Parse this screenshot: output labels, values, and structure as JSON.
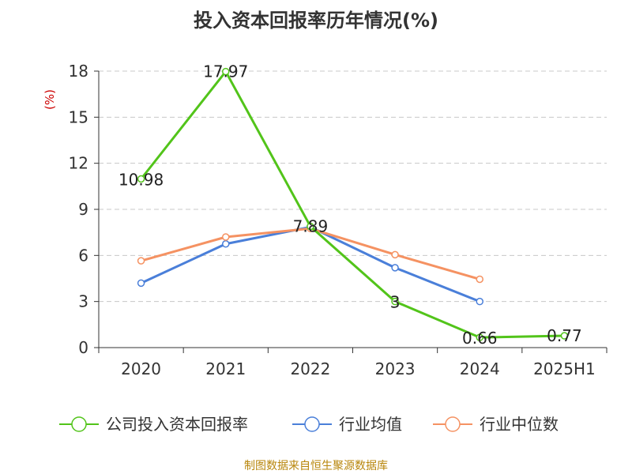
{
  "chart_data": {
    "type": "line",
    "title": "投入资本回报率历年情况(%)",
    "ylabel": "(%)",
    "xlabel": "",
    "categories": [
      "2020",
      "2021",
      "2022",
      "2023",
      "2024",
      "2025H1"
    ],
    "yticks": [
      0,
      3,
      6,
      9,
      12,
      15,
      18
    ],
    "ylim": [
      0,
      18
    ],
    "grid": true,
    "legend_position": "bottom",
    "series": [
      {
        "name": "公司投入资本回报率",
        "color": "#52c41a",
        "values": [
          10.98,
          17.97,
          7.89,
          3,
          0.66,
          0.77
        ],
        "show_labels": true,
        "labels": [
          "10.98",
          "17.97",
          "7.89",
          "3",
          "0.66",
          "0.77"
        ]
      },
      {
        "name": "行业均值",
        "color": "#4a7fd9",
        "values": [
          4.2,
          6.75,
          7.85,
          5.2,
          3.0,
          null
        ],
        "show_labels": false
      },
      {
        "name": "行业中位数",
        "color": "#f59262",
        "values": [
          5.65,
          7.2,
          7.75,
          6.05,
          4.45,
          null
        ],
        "show_labels": false
      }
    ],
    "source": "制图数据来自恒生聚源数据库"
  }
}
